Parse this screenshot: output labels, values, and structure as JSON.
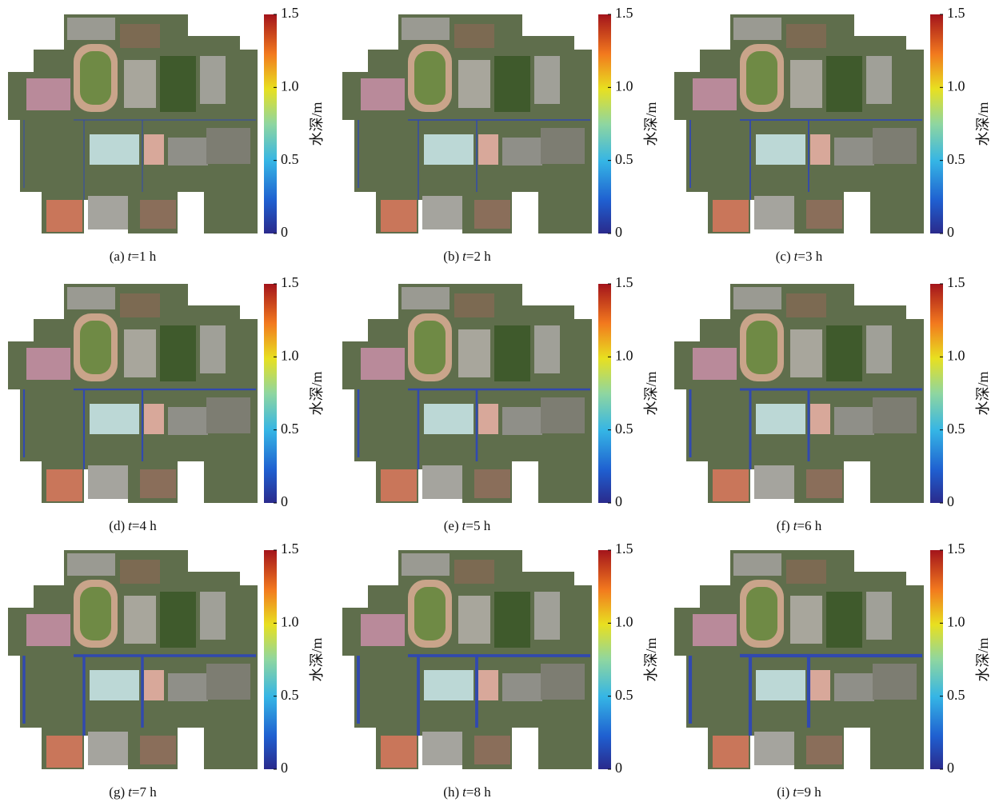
{
  "colorbar": {
    "label": "水深/m",
    "lim": [
      0,
      1.5
    ],
    "ticks": [
      0,
      0.5,
      {
        "value": 1,
        "label": "1.0"
      },
      1.5
    ]
  },
  "panels": [
    {
      "prefix": "(a)",
      "var": "t",
      "rest": "=1 h"
    },
    {
      "prefix": "(b)",
      "var": "t",
      "rest": "=2 h"
    },
    {
      "prefix": "(c)",
      "var": "t",
      "rest": "=3 h"
    },
    {
      "prefix": "(d)",
      "var": "t",
      "rest": "=4 h"
    },
    {
      "prefix": "(e)",
      "var": "t",
      "rest": "=5 h"
    },
    {
      "prefix": "(f)",
      "var": "t",
      "rest": "=6 h"
    },
    {
      "prefix": "(g)",
      "var": "t",
      "rest": "=7 h"
    },
    {
      "prefix": "(h)",
      "var": "t",
      "rest": "=8 h"
    },
    {
      "prefix": "(i)",
      "var": "t",
      "rest": "=9 h"
    }
  ]
}
